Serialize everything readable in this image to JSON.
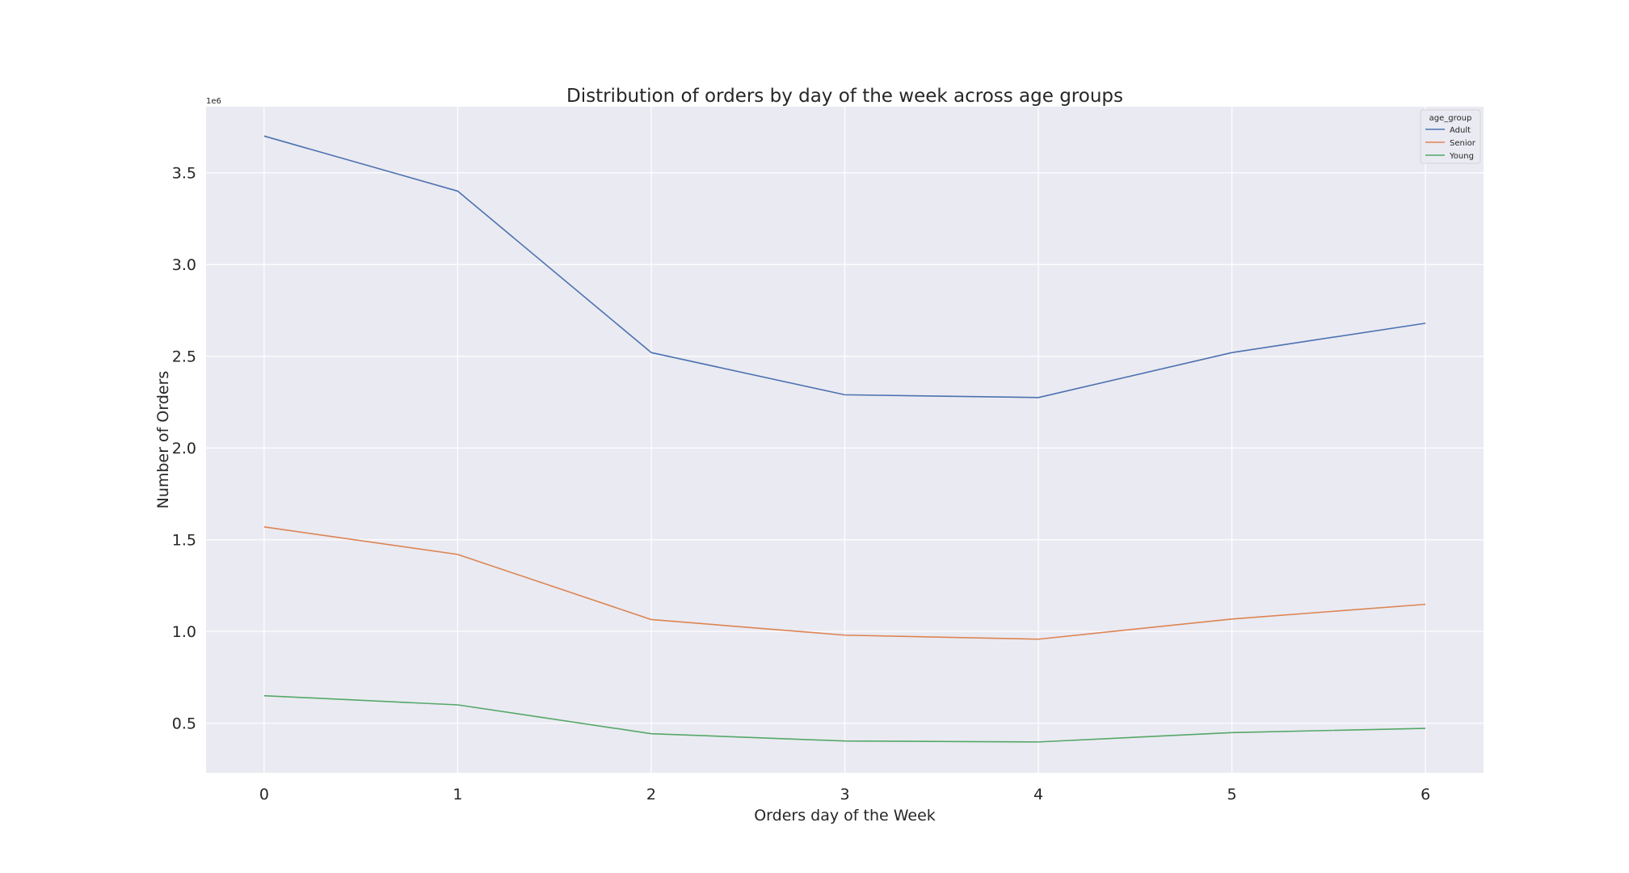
{
  "chart_data": {
    "type": "line",
    "title": "Distribution of orders by day of the week across age groups",
    "xlabel": "Orders day of the Week",
    "ylabel": "Number of Orders",
    "y_offset_label": "1e6",
    "x": [
      0,
      1,
      2,
      3,
      4,
      5,
      6
    ],
    "xlim": [
      -0.3,
      6.3
    ],
    "ylim": [
      230000,
      3860000
    ],
    "x_ticks": [
      0,
      1,
      2,
      3,
      4,
      5,
      6
    ],
    "x_tick_labels": [
      "0",
      "1",
      "2",
      "3",
      "4",
      "5",
      "6"
    ],
    "y_ticks": [
      500000,
      1000000,
      1500000,
      2000000,
      2500000,
      3000000,
      3500000
    ],
    "y_tick_labels": [
      "0.5",
      "1.0",
      "1.5",
      "2.0",
      "2.5",
      "3.0",
      "3.5"
    ],
    "grid": true,
    "background": "#eaeaf2",
    "legend": {
      "title": "age_group",
      "position": "top-right"
    },
    "series": [
      {
        "name": "Adult",
        "color": "#4c72b0",
        "values": [
          3700000,
          3400000,
          2520000,
          2290000,
          2275000,
          2520000,
          2680000
        ]
      },
      {
        "name": "Senior",
        "color": "#dd8452",
        "values": [
          1570000,
          1420000,
          1065000,
          980000,
          958000,
          1068000,
          1148000
        ]
      },
      {
        "name": "Young",
        "color": "#55a868",
        "values": [
          650000,
          600000,
          443000,
          403000,
          398000,
          449000,
          472000
        ]
      }
    ]
  }
}
